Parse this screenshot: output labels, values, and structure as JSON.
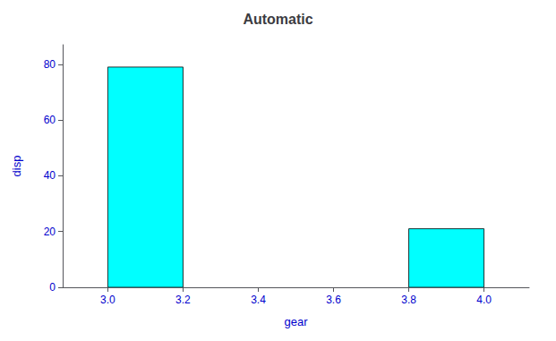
{
  "chart_data": {
    "type": "bar",
    "title": "Automatic",
    "xlabel": "gear",
    "ylabel": "disp",
    "x": [
      3.0,
      3.8
    ],
    "bar_width": 0.2,
    "values": [
      79,
      21
    ],
    "color": "#00FFFF",
    "xlim": [
      2.88,
      4.12
    ],
    "xticks": [
      {
        "value": 3.0,
        "label": "3.0"
      },
      {
        "value": 3.2,
        "label": "3.2"
      },
      {
        "value": 3.4,
        "label": "3.4"
      },
      {
        "value": 3.6,
        "label": "3.6"
      },
      {
        "value": 3.8,
        "label": "3.8"
      },
      {
        "value": 4.0,
        "label": "4.0"
      }
    ],
    "ylim": [
      0,
      87
    ],
    "yticks": [
      0,
      20,
      40,
      60,
      80
    ],
    "grid": false
  }
}
